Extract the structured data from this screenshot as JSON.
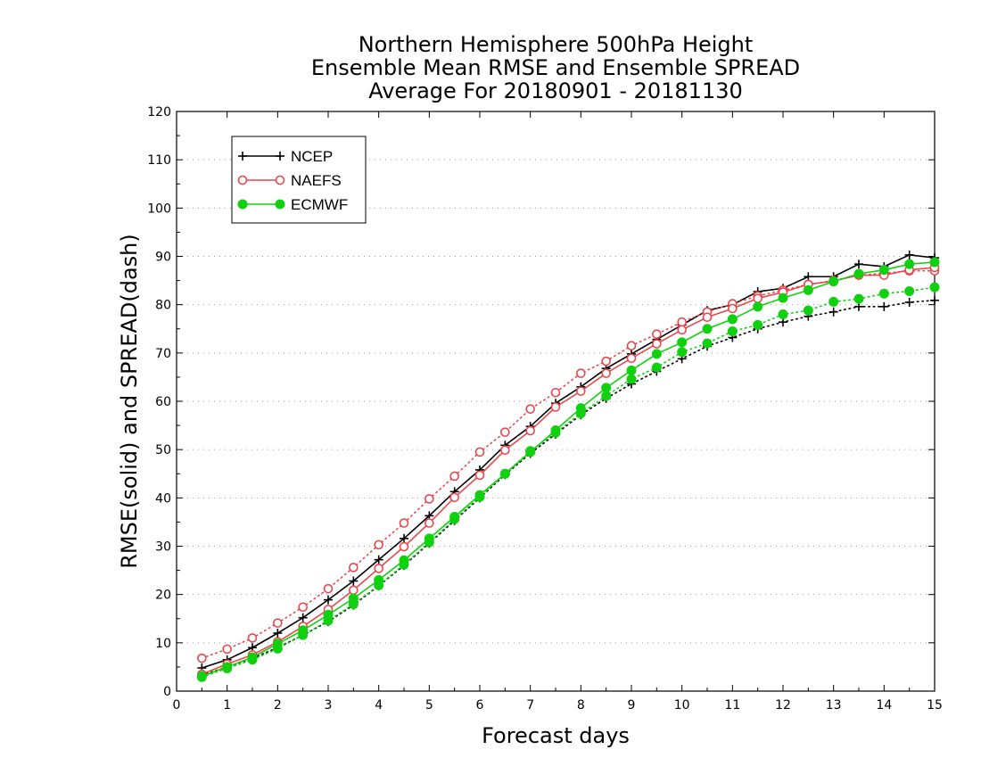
{
  "chart_data": {
    "type": "line",
    "title": [
      "Northern Hemisphere 500hPa Height",
      "Ensemble Mean RMSE and Ensemble SPREAD",
      "Average For 20180901 - 20181130"
    ],
    "xlabel": "Forecast days",
    "ylabel": "RMSE(solid) and SPREAD(dash)",
    "xlim": [
      0,
      15
    ],
    "ylim": [
      0,
      120
    ],
    "xticks": [
      0,
      1,
      2,
      3,
      4,
      5,
      6,
      7,
      8,
      9,
      10,
      11,
      12,
      13,
      14,
      15
    ],
    "yticks": [
      0,
      10,
      20,
      30,
      40,
      50,
      60,
      70,
      80,
      90,
      100,
      110,
      120
    ],
    "grid": "horizontal dotted",
    "legend_position": "top-left",
    "x": [
      0.5,
      1.0,
      1.5,
      2.0,
      2.5,
      3.0,
      3.5,
      4.0,
      4.5,
      5.0,
      5.5,
      6.0,
      6.5,
      7.0,
      7.5,
      8.0,
      8.5,
      9.0,
      9.5,
      10.0,
      10.5,
      11.0,
      11.5,
      12.0,
      12.5,
      13.0,
      13.5,
      14.0,
      14.5,
      15.0
    ],
    "series": [
      {
        "name": "NCEP",
        "color": "#000000",
        "marker": "plus",
        "rmse": [
          4.8,
          6.5,
          9.0,
          12.0,
          15.2,
          18.9,
          22.8,
          27.2,
          31.6,
          36.3,
          41.3,
          45.8,
          50.9,
          54.8,
          59.6,
          63.0,
          66.8,
          69.8,
          72.8,
          75.8,
          78.8,
          80.0,
          82.7,
          83.4,
          85.8,
          85.8,
          88.4,
          87.9,
          90.3,
          89.7
        ],
        "spread": [
          3.3,
          5.0,
          6.8,
          9.0,
          11.6,
          14.4,
          17.8,
          21.8,
          26.0,
          30.6,
          35.3,
          40.0,
          44.8,
          49.2,
          53.2,
          57.2,
          60.6,
          63.6,
          66.2,
          68.8,
          71.4,
          73.2,
          75.0,
          76.4,
          77.6,
          78.5,
          79.6,
          79.6,
          80.5,
          80.9
        ]
      },
      {
        "name": "NAEFS",
        "color": "#e8484d",
        "marker": "circle-open",
        "rmse": [
          3.5,
          5.6,
          7.5,
          10.2,
          13.4,
          16.9,
          20.9,
          25.4,
          29.9,
          34.8,
          40.1,
          44.7,
          49.9,
          53.9,
          58.8,
          62.1,
          65.8,
          68.9,
          71.9,
          74.8,
          77.4,
          79.2,
          81.3,
          82.6,
          84.2,
          84.9,
          86.1,
          86.1,
          87.2,
          87.7
        ],
        "spread": [
          6.8,
          8.7,
          11.0,
          14.1,
          17.4,
          21.2,
          25.6,
          30.3,
          34.8,
          39.8,
          44.5,
          49.5,
          53.6,
          58.4,
          61.8,
          65.8,
          68.3,
          71.5,
          73.9,
          76.4,
          78.5,
          80.2,
          81.8,
          83.0,
          84.2,
          85.0,
          86.1,
          86.5,
          87.0,
          87.0
        ]
      },
      {
        "name": "ECMWF",
        "color": "#10d010",
        "marker": "circle-filled",
        "rmse": [
          3.1,
          5.0,
          7.0,
          9.8,
          12.6,
          15.8,
          19.2,
          23.0,
          27.1,
          31.6,
          36.1,
          40.6,
          45.0,
          49.5,
          54.0,
          58.6,
          62.8,
          66.4,
          69.8,
          72.2,
          75.0,
          77.0,
          79.6,
          81.4,
          83.0,
          84.8,
          86.4,
          87.2,
          88.4,
          88.8
        ],
        "spread": [
          2.9,
          4.7,
          6.5,
          8.8,
          11.6,
          14.6,
          18.0,
          21.9,
          26.2,
          30.8,
          35.6,
          40.2,
          45.0,
          49.7,
          53.5,
          57.5,
          61.1,
          64.6,
          67.0,
          70.2,
          72.0,
          74.5,
          75.8,
          78.0,
          78.8,
          80.6,
          81.2,
          82.3,
          82.8,
          83.6
        ]
      }
    ]
  }
}
